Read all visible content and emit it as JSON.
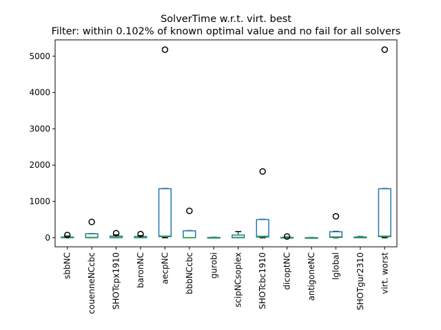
{
  "chart_data": {
    "type": "boxplot",
    "title": "SolverTime w.r.t. virt. best",
    "subtitle": "Filter: within 0.102% of known optimal value and no fail for all solvers",
    "xlabel": "",
    "ylabel": "",
    "ylim": [
      -250,
      5450
    ],
    "yticks": [
      0,
      1000,
      2000,
      3000,
      4000,
      5000
    ],
    "grid": false,
    "colors": {
      "box": "#1f77b4",
      "median": "#2ca02c",
      "whisker": "#000000",
      "flier": "#000000"
    },
    "categories": [
      "sbbNC",
      "couenneNCcbc",
      "SHOTcpx1910",
      "baronNC",
      "aecpNC",
      "bbbNCcbc",
      "gurobi",
      "scipNCsoplex",
      "SHOTcbc1910",
      "dicoptNC",
      "antigoneNC",
      "lglobal",
      "SHOTgur2310",
      "virt. worst"
    ],
    "boxes": [
      {
        "whislo": 0,
        "q1": 0,
        "med": 5,
        "q3": 20,
        "whishi": 45,
        "fliers": [
          75
        ]
      },
      {
        "whislo": 0,
        "q1": 0,
        "med": 10,
        "q3": 110,
        "whishi": 115,
        "fliers": [
          435
        ]
      },
      {
        "whislo": 0,
        "q1": 2,
        "med": 10,
        "q3": 45,
        "whishi": 80,
        "fliers": [
          125
        ]
      },
      {
        "whislo": 0,
        "q1": 0,
        "med": 5,
        "q3": 35,
        "whishi": 60,
        "fliers": [
          100
        ]
      },
      {
        "whislo": 0,
        "q1": 30,
        "med": 45,
        "q3": 1350,
        "whishi": 1355,
        "fliers": [
          5180
        ]
      },
      {
        "whislo": 0,
        "q1": 0,
        "med": 5,
        "q3": 190,
        "whishi": 195,
        "fliers": [
          740
        ]
      },
      {
        "whislo": 0,
        "q1": 0,
        "med": 2,
        "q3": 8,
        "whishi": 12,
        "fliers": []
      },
      {
        "whislo": 0,
        "q1": 0,
        "med": 10,
        "q3": 75,
        "whishi": 170,
        "fliers": []
      },
      {
        "whislo": 0,
        "q1": 20,
        "med": 40,
        "q3": 500,
        "whishi": 505,
        "fliers": [
          1825
        ]
      },
      {
        "whislo": 0,
        "q1": 0,
        "med": 2,
        "q3": 10,
        "whishi": 20,
        "fliers": [
          35
        ]
      },
      {
        "whislo": 0,
        "q1": 0,
        "med": 1,
        "q3": 3,
        "whishi": 5,
        "fliers": []
      },
      {
        "whislo": 0,
        "q1": 10,
        "med": 25,
        "q3": 165,
        "whishi": 175,
        "fliers": [
          590
        ]
      },
      {
        "whislo": 0,
        "q1": 0,
        "med": 5,
        "q3": 20,
        "whishi": 30,
        "fliers": []
      },
      {
        "whislo": 0,
        "q1": 30,
        "med": 45,
        "q3": 1350,
        "whishi": 1355,
        "fliers": [
          5180
        ]
      }
    ]
  }
}
